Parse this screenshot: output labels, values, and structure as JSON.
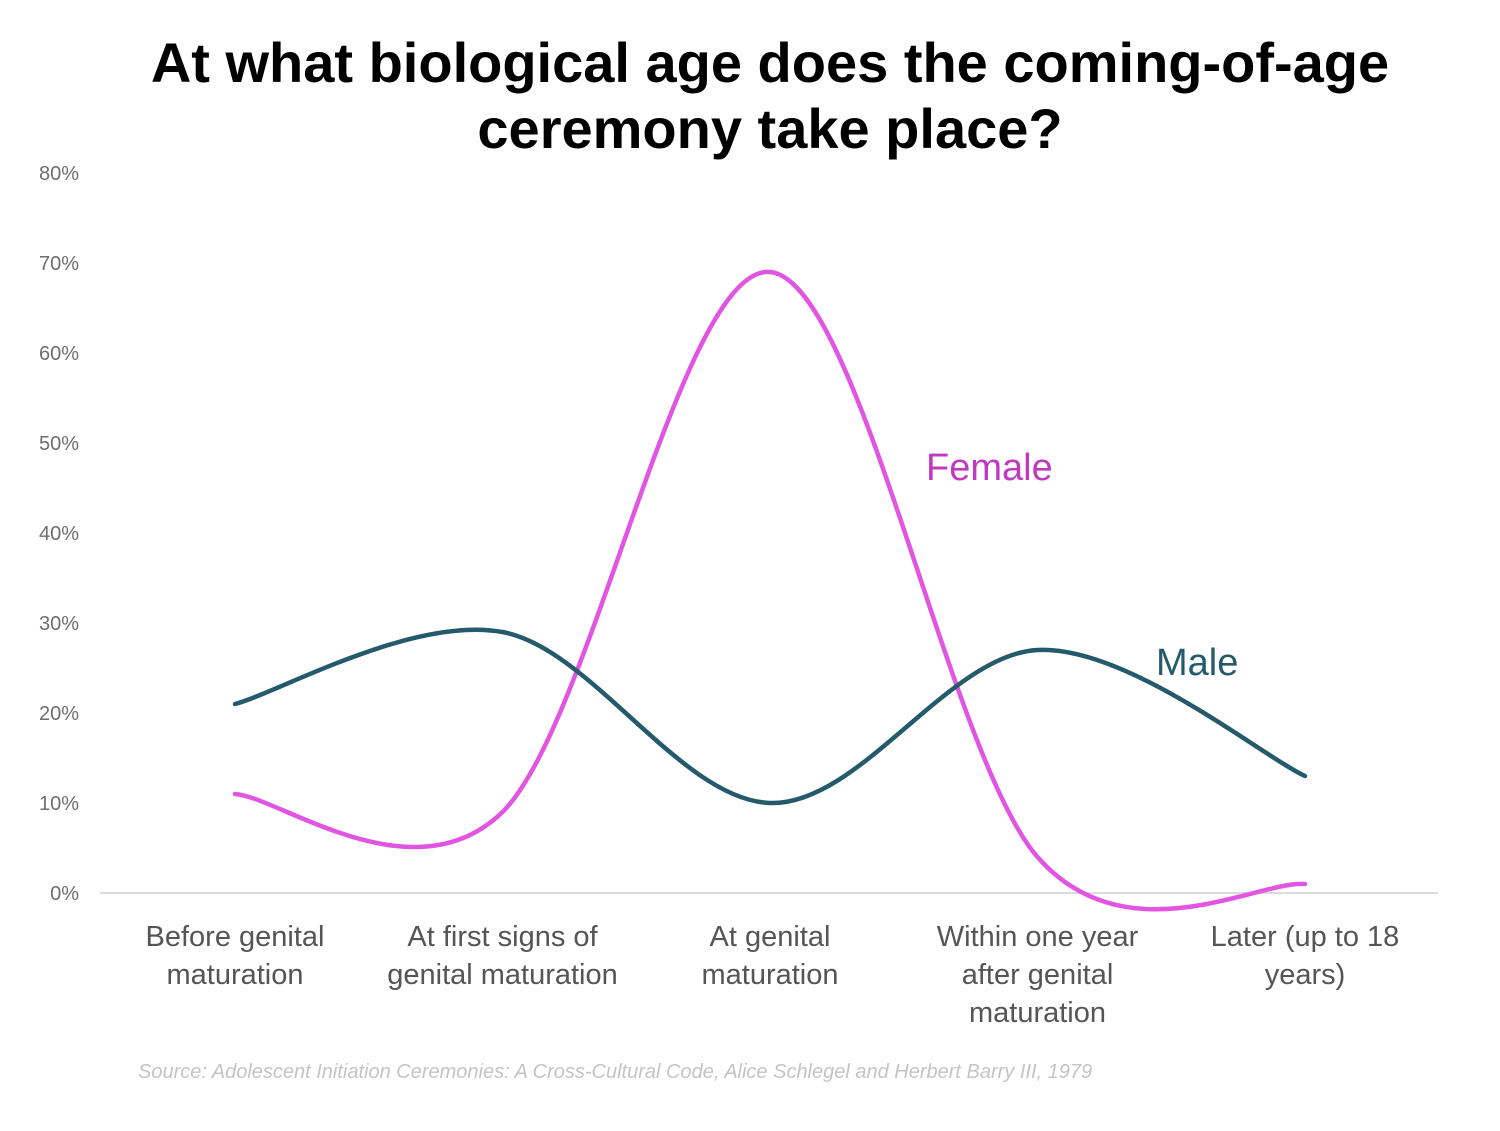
{
  "chart_data": {
    "type": "line",
    "title": "At what biological age does the coming-of-age ceremony take place?",
    "categories": [
      [
        "Before genital",
        "maturation"
      ],
      [
        "At first signs of",
        "genital maturation"
      ],
      [
        "At genital",
        "maturation"
      ],
      [
        "Within one year",
        "after genital",
        "maturation"
      ],
      [
        "Later (up to 18",
        "years)"
      ]
    ],
    "yticks": [
      "0%",
      "10%",
      "20%",
      "30%",
      "40%",
      "50%",
      "60%",
      "70%",
      "80%"
    ],
    "ylim": [
      0,
      80
    ],
    "y_unit": "%",
    "grid": false,
    "smooth": true,
    "series": [
      {
        "name": "Female",
        "color": "#e255e2",
        "label_color": "#c139c1",
        "values": [
          11,
          9,
          69,
          4,
          1
        ]
      },
      {
        "name": "Male",
        "color": "#245a6b",
        "label_color": "#245a6b",
        "values": [
          21,
          29,
          10,
          27,
          13
        ]
      }
    ],
    "source": "Source:  Adolescent Initiation Ceremonies: A Cross-Cultural Code, Alice Schlegel and Herbert Barry III, 1979"
  }
}
